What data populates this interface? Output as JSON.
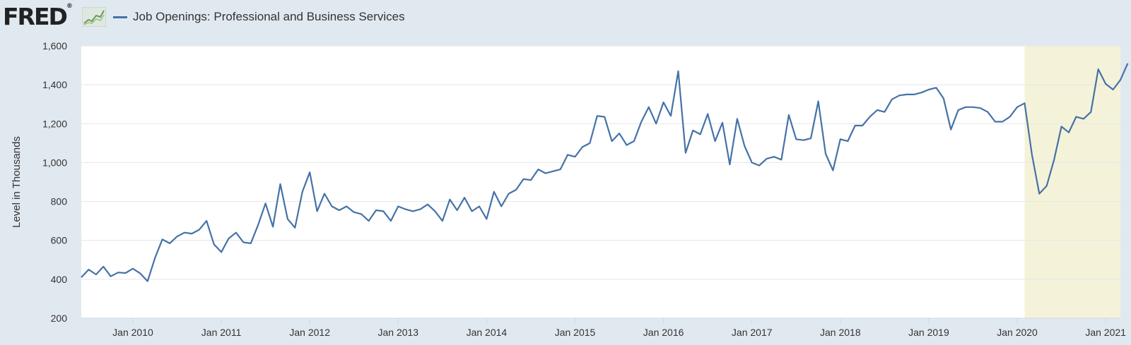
{
  "header": {
    "logo_text": "FRED",
    "logo_reg": "®",
    "legend_label": "Job Openings: Professional and Business Services"
  },
  "colors": {
    "line": "#4572a7",
    "recession": "#f4f3d9",
    "plot_bg": "#ffffff",
    "page_bg": "#e1e9f0",
    "grid": "#e6e6e6"
  },
  "chart_data": {
    "type": "line",
    "title": "",
    "xlabel": "",
    "ylabel": "Level in Thousands",
    "ylim": [
      200,
      1600
    ],
    "xlim": [
      "2009-06",
      "2021-03"
    ],
    "y_ticks": [
      200,
      400,
      600,
      800,
      1000,
      1200,
      1400,
      1600
    ],
    "y_tick_labels": [
      "200",
      "400",
      "600",
      "800",
      "1,000",
      "1,200",
      "1,400",
      "1,600"
    ],
    "x_ticks": [
      "2010-01",
      "2011-01",
      "2012-01",
      "2013-01",
      "2014-01",
      "2015-01",
      "2016-01",
      "2017-01",
      "2018-01",
      "2019-01",
      "2020-01",
      "2021-01"
    ],
    "x_tick_labels": [
      "Jan 2010",
      "Jan 2011",
      "Jan 2012",
      "Jan 2013",
      "Jan 2014",
      "Jan 2015",
      "Jan 2016",
      "Jan 2017",
      "Jan 2018",
      "Jan 2019",
      "Jan 2020",
      "Jan 2021"
    ],
    "recession": {
      "start": "2020-02",
      "end": "2021-03"
    },
    "grid": true,
    "legend": "top-left",
    "series": [
      {
        "name": "Job Openings: Professional and Business Services",
        "start": "2009-06",
        "values": [
          410,
          450,
          425,
          465,
          415,
          435,
          432,
          455,
          430,
          390,
          510,
          605,
          585,
          620,
          640,
          635,
          655,
          700,
          580,
          540,
          610,
          640,
          590,
          585,
          680,
          790,
          670,
          890,
          710,
          665,
          850,
          950,
          750,
          840,
          775,
          755,
          775,
          745,
          735,
          700,
          755,
          750,
          700,
          775,
          760,
          750,
          760,
          785,
          750,
          700,
          810,
          755,
          820,
          750,
          775,
          710,
          850,
          775,
          840,
          860,
          915,
          910,
          965,
          945,
          955,
          965,
          1040,
          1030,
          1080,
          1100,
          1240,
          1235,
          1110,
          1150,
          1090,
          1110,
          1210,
          1285,
          1200,
          1310,
          1240,
          1470,
          1050,
          1165,
          1145,
          1250,
          1110,
          1205,
          990,
          1225,
          1085,
          1000,
          985,
          1020,
          1030,
          1015,
          1245,
          1120,
          1115,
          1125,
          1315,
          1045,
          960,
          1120,
          1110,
          1190,
          1190,
          1235,
          1270,
          1260,
          1325,
          1345,
          1350,
          1350,
          1360,
          1375,
          1385,
          1330,
          1170,
          1270,
          1285,
          1285,
          1280,
          1260,
          1210,
          1210,
          1235,
          1285,
          1305,
          1040,
          840,
          880,
          1015,
          1185,
          1155,
          1235,
          1225,
          1260,
          1480,
          1405,
          1375,
          1425,
          1510
        ]
      }
    ]
  }
}
